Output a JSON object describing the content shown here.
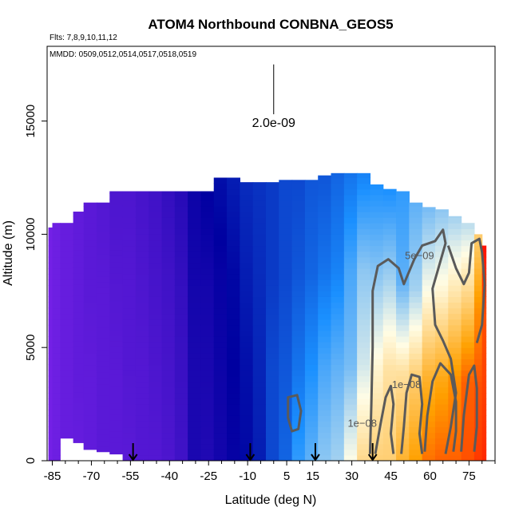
{
  "chart_data": {
    "type": "heatmap",
    "title": "ATOM4 Northbound CONBNA_GEOS5",
    "flights_label": "Flts: 7,8,9,10,11,12",
    "dates_label": "MMDD: 0509,0512,0514,0517,0518,0519",
    "xlabel": "Latitude (deg N)",
    "ylabel": "Altitude (m)",
    "xlim": [
      -87,
      85
    ],
    "ylim": [
      0,
      18300
    ],
    "x_ticks": [
      -85,
      -70,
      -55,
      -40,
      -25,
      -10,
      5,
      15,
      30,
      45,
      60,
      75
    ],
    "x_minor_step": 5,
    "y_ticks": [
      0,
      5000,
      10000,
      15000
    ],
    "scale_bar": {
      "label": "2.0e-09",
      "x": 0,
      "y_bottom": 15300,
      "y_top": 17500
    },
    "profile_markers_latitude": [
      -54,
      -9,
      16,
      38
    ],
    "contour_labels": [
      {
        "text": "5e−09",
        "x": 56,
        "y": 8900
      },
      {
        "text": "1e−08",
        "x": 51,
        "y": 3200
      },
      {
        "text": "1e−08",
        "x": 34,
        "y": 1500
      }
    ],
    "color_scale": [
      "#8024ee",
      "#0000a0",
      "#1a90ff",
      "#fffde6",
      "#ffa000",
      "#ff0000"
    ],
    "columns": [
      {
        "x0": -86.5,
        "x1": -85,
        "top": 10300,
        "v": [
          0.02,
          0.02,
          0.02,
          0.02
        ]
      },
      {
        "x0": -85,
        "x1": -82,
        "top": 10500,
        "v": [
          0.03,
          0.03,
          0.03,
          0.03
        ]
      },
      {
        "x0": -82,
        "x1": -77,
        "top": 10500,
        "bottom": 1000,
        "v": [
          0.04,
          0.04,
          0.04,
          0.04
        ]
      },
      {
        "x0": -77,
        "x1": -73,
        "top": 11000,
        "bottom": 800,
        "v": [
          0.04,
          0.05,
          0.05,
          0.05
        ]
      },
      {
        "x0": -73,
        "x1": -68,
        "top": 11400,
        "bottom": 500,
        "v": [
          0.05,
          0.05,
          0.06,
          0.06
        ]
      },
      {
        "x0": -68,
        "x1": -63,
        "top": 11400,
        "bottom": 400,
        "v": [
          0.06,
          0.06,
          0.06,
          0.07
        ]
      },
      {
        "x0": -63,
        "x1": -58,
        "top": 11900,
        "bottom": 300,
        "v": [
          0.06,
          0.06,
          0.07,
          0.08
        ]
      },
      {
        "x0": -58,
        "x1": -53,
        "top": 11900,
        "v": [
          0.06,
          0.07,
          0.07,
          0.08
        ]
      },
      {
        "x0": -53,
        "x1": -48,
        "top": 11900,
        "v": [
          0.07,
          0.07,
          0.08,
          0.09
        ]
      },
      {
        "x0": -48,
        "x1": -43,
        "top": 11900,
        "v": [
          0.07,
          0.08,
          0.09,
          0.1
        ]
      },
      {
        "x0": -43,
        "x1": -38,
        "top": 11900,
        "v": [
          0.08,
          0.09,
          0.1,
          0.12
        ]
      },
      {
        "x0": -38,
        "x1": -33,
        "top": 11900,
        "v": [
          0.1,
          0.11,
          0.12,
          0.14
        ]
      },
      {
        "x0": -33,
        "x1": -28,
        "top": 11900,
        "v": [
          0.16,
          0.16,
          0.17,
          0.18
        ]
      },
      {
        "x0": -28,
        "x1": -23,
        "top": 11900,
        "v": [
          0.15,
          0.16,
          0.17,
          0.2
        ]
      },
      {
        "x0": -23,
        "x1": -18,
        "top": 12500,
        "v": [
          0.17,
          0.18,
          0.19,
          0.22
        ]
      },
      {
        "x0": -18,
        "x1": -13,
        "top": 12500,
        "v": [
          0.19,
          0.2,
          0.21,
          0.24
        ]
      },
      {
        "x0": -13,
        "x1": -8,
        "top": 12300,
        "v": [
          0.21,
          0.22,
          0.24,
          0.26
        ]
      },
      {
        "x0": -8,
        "x1": -3,
        "top": 12300,
        "v": [
          0.24,
          0.25,
          0.26,
          0.27
        ]
      },
      {
        "x0": -3,
        "x1": 2,
        "top": 12300,
        "v": [
          0.3,
          0.3,
          0.28,
          0.28
        ]
      },
      {
        "x0": 2,
        "x1": 7,
        "top": 12400,
        "v": [
          0.34,
          0.32,
          0.3,
          0.3
        ]
      },
      {
        "x0": 7,
        "x1": 12,
        "top": 12400,
        "v": [
          0.42,
          0.36,
          0.32,
          0.3
        ]
      },
      {
        "x0": 12,
        "x1": 17,
        "top": 12400,
        "v": [
          0.46,
          0.4,
          0.34,
          0.32
        ]
      },
      {
        "x0": 17,
        "x1": 22,
        "top": 12600,
        "v": [
          0.5,
          0.44,
          0.36,
          0.32
        ]
      },
      {
        "x0": 22,
        "x1": 27,
        "top": 12700,
        "v": [
          0.52,
          0.46,
          0.38,
          0.34
        ]
      },
      {
        "x0": 27,
        "x1": 32,
        "top": 12700,
        "v": [
          0.6,
          0.48,
          0.44,
          0.36
        ]
      },
      {
        "x0": 32,
        "x1": 37,
        "top": 12700,
        "v": [
          0.68,
          0.56,
          0.5,
          0.38
        ]
      },
      {
        "x0": 37,
        "x1": 42,
        "top": 12200,
        "v": [
          0.7,
          0.62,
          0.5,
          0.4
        ]
      },
      {
        "x0": 42,
        "x1": 47,
        "top": 12000,
        "v": [
          0.7,
          0.66,
          0.52,
          0.4
        ]
      },
      {
        "x0": 47,
        "x1": 52,
        "top": 11900,
        "v": [
          0.76,
          0.66,
          0.46,
          0.42
        ]
      },
      {
        "x0": 52,
        "x1": 57,
        "top": 11400,
        "v": [
          0.8,
          0.7,
          0.52,
          0.46
        ]
      },
      {
        "x0": 57,
        "x1": 62,
        "top": 11200,
        "v": [
          0.86,
          0.76,
          0.6,
          0.48
        ]
      },
      {
        "x0": 62,
        "x1": 67,
        "top": 11100,
        "v": [
          0.88,
          0.78,
          0.62,
          0.5
        ]
      },
      {
        "x0": 67,
        "x1": 72,
        "top": 10800,
        "v": [
          0.88,
          0.82,
          0.66,
          0.52
        ]
      },
      {
        "x0": 72,
        "x1": 77,
        "top": 10500,
        "v": [
          0.9,
          0.88,
          0.7,
          0.54
        ]
      },
      {
        "x0": 77,
        "x1": 80,
        "top": 10000,
        "v": [
          0.93,
          0.9,
          0.82,
          0.7
        ]
      },
      {
        "x0": 80,
        "x1": 81.5,
        "top": 9500,
        "v": [
          0.95,
          0.92,
          0.9,
          0.98
        ]
      }
    ],
    "contours": [
      {
        "level": "5e-09",
        "points": [
          [
            37,
            300
          ],
          [
            37.5,
            2500
          ],
          [
            38,
            5000
          ],
          [
            38,
            7500
          ],
          [
            40,
            8600
          ],
          [
            44,
            8900
          ],
          [
            48,
            8500
          ],
          [
            50,
            7800
          ],
          [
            54,
            8900
          ],
          [
            57,
            9500
          ],
          [
            62,
            9700
          ],
          [
            65,
            10200
          ],
          [
            66,
            9600
          ],
          [
            64,
            8800
          ],
          [
            61,
            7600
          ],
          [
            62,
            6000
          ],
          [
            65,
            5300
          ],
          [
            68,
            4500
          ],
          [
            70,
            3000
          ],
          [
            68,
            1500
          ],
          [
            66,
            300
          ]
        ]
      },
      {
        "level": "5e-09",
        "points": [
          [
            67,
            9500
          ],
          [
            70,
            8500
          ],
          [
            73,
            7800
          ],
          [
            75,
            8300
          ],
          [
            76,
            9600
          ],
          [
            79,
            9800
          ],
          [
            80,
            9200
          ],
          [
            81,
            7800
          ],
          [
            80,
            6000
          ],
          [
            78,
            5200
          ]
        ]
      },
      {
        "level": "1e-08",
        "points": [
          [
            39,
            300
          ],
          [
            41,
            1600
          ],
          [
            43,
            2800
          ],
          [
            45,
            3300
          ],
          [
            46,
            2500
          ],
          [
            45,
            1200
          ],
          [
            46,
            300
          ]
        ]
      },
      {
        "level": "1e-08",
        "points": [
          [
            49,
            300
          ],
          [
            50,
            1500
          ],
          [
            51,
            3000
          ],
          [
            53,
            3800
          ],
          [
            56,
            3700
          ],
          [
            57,
            2500
          ],
          [
            56,
            1200
          ],
          [
            57,
            300
          ]
        ]
      },
      {
        "level": "1e-08",
        "points": [
          [
            58,
            400
          ],
          [
            59,
            2000
          ],
          [
            61,
            3500
          ],
          [
            64,
            4300
          ],
          [
            68,
            3800
          ],
          [
            70,
            2600
          ],
          [
            70,
            1300
          ],
          [
            69,
            400
          ]
        ]
      },
      {
        "level": "1e-08",
        "points": [
          [
            72,
            400
          ],
          [
            73,
            2000
          ],
          [
            75,
            3800
          ],
          [
            77,
            4200
          ],
          [
            78,
            3200
          ],
          [
            78,
            1500
          ],
          [
            77,
            400
          ]
        ]
      },
      {
        "level": "5e-09",
        "closed": true,
        "points": [
          [
            5.5,
            2800
          ],
          [
            9,
            2900
          ],
          [
            10.5,
            2200
          ],
          [
            9.5,
            1400
          ],
          [
            7,
            1300
          ],
          [
            5.5,
            1900
          ]
        ]
      }
    ]
  }
}
